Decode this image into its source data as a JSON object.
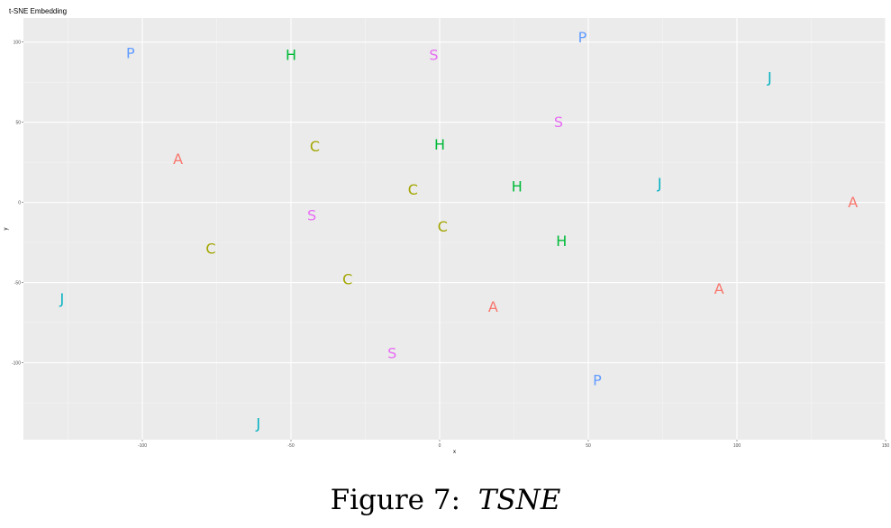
{
  "chart_data": {
    "type": "scatter",
    "title": "t-SNE Embedding",
    "xlabel": "x",
    "ylabel": "y",
    "xlim": [
      -140,
      150
    ],
    "ylim": [
      -148,
      115
    ],
    "x_ticks": [
      -100,
      -50,
      0,
      50,
      100,
      150
    ],
    "y_ticks": [
      100,
      50,
      0,
      -50,
      -100
    ],
    "grid": true,
    "legend": "none",
    "groups": [
      {
        "label": "A",
        "color": "#F8766D"
      },
      {
        "label": "C",
        "color": "#A3A500"
      },
      {
        "label": "H",
        "color": "#00BA38"
      },
      {
        "label": "J",
        "color": "#00B0C0"
      },
      {
        "label": "P",
        "color": "#619CFF"
      },
      {
        "label": "S",
        "color": "#E76BF3"
      }
    ],
    "points": [
      {
        "label": "P",
        "x": -104,
        "y": 93
      },
      {
        "label": "H",
        "x": -50,
        "y": 92
      },
      {
        "label": "S",
        "x": -2,
        "y": 92
      },
      {
        "label": "P",
        "x": 48,
        "y": 103
      },
      {
        "label": "J",
        "x": 111,
        "y": 78
      },
      {
        "label": "S",
        "x": 40,
        "y": 50
      },
      {
        "label": "C",
        "x": -42,
        "y": 35
      },
      {
        "label": "H",
        "x": 0,
        "y": 36
      },
      {
        "label": "A",
        "x": -88,
        "y": 27
      },
      {
        "label": "C",
        "x": -9,
        "y": 8
      },
      {
        "label": "H",
        "x": 26,
        "y": 10
      },
      {
        "label": "J",
        "x": 74,
        "y": 12
      },
      {
        "label": "A",
        "x": 139,
        "y": 0
      },
      {
        "label": "S",
        "x": -43,
        "y": -8
      },
      {
        "label": "C",
        "x": 1,
        "y": -15
      },
      {
        "label": "H",
        "x": 41,
        "y": -24
      },
      {
        "label": "C",
        "x": -77,
        "y": -29
      },
      {
        "label": "C",
        "x": -31,
        "y": -48
      },
      {
        "label": "A",
        "x": 94,
        "y": -54
      },
      {
        "label": "J",
        "x": -127,
        "y": -60
      },
      {
        "label": "A",
        "x": 18,
        "y": -65
      },
      {
        "label": "S",
        "x": -16,
        "y": -94
      },
      {
        "label": "P",
        "x": 53,
        "y": -111
      },
      {
        "label": "J",
        "x": -61,
        "y": -138
      }
    ]
  },
  "caption": {
    "prefix": "Figure 7:",
    "title": "TSNE"
  }
}
